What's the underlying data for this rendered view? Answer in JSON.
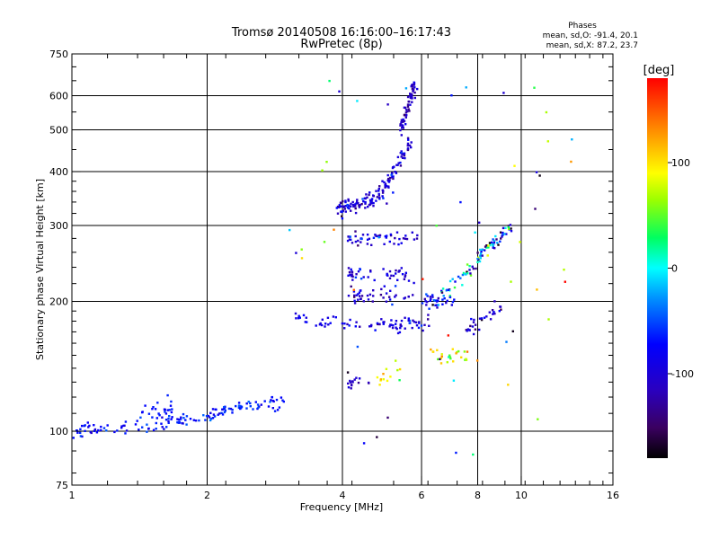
{
  "chart_data": {
    "type": "scatter",
    "title": "Tromsø 20140508 16:16:00–16:17:43",
    "subtitle": "RwPretec (8p)",
    "xlabel": "Frequency [MHz]",
    "ylabel": "Stationary phase Virtual Height [km]",
    "x_scale": "log",
    "y_scale": "log",
    "xlim": [
      1,
      16
    ],
    "ylim": [
      75,
      750
    ],
    "x_ticks": [
      "1",
      "2",
      "4",
      "6",
      "8",
      "10",
      "16"
    ],
    "x_tick_values": [
      1,
      2,
      4,
      6,
      8,
      10,
      16
    ],
    "y_ticks": [
      "75",
      "100",
      "200",
      "300",
      "400",
      "500",
      "600",
      "750"
    ],
    "y_tick_values": [
      75,
      100,
      200,
      300,
      400,
      500,
      600,
      750
    ],
    "grid": true,
    "stats": {
      "title": "Phases",
      "line_o": "mean, sd,O: -91.4, 20.1",
      "line_x": "mean, sd,X:  87.2, 23.7"
    },
    "colorbar": {
      "label": "[deg]",
      "range": [
        -180,
        180
      ],
      "ticks": [
        "100",
        "0",
        "-100"
      ],
      "tick_values": [
        100,
        0,
        -100
      ]
    },
    "traces": [
      {
        "f_start": 1.0,
        "f_end": 1.45,
        "h_start": 100,
        "h_end": 103,
        "phase": -75,
        "sd": 12,
        "n": 40
      },
      {
        "f_start": 1.45,
        "f_end": 3.0,
        "h_start": 103,
        "h_end": 118,
        "phase": -70,
        "sd": 15,
        "n": 110
      },
      {
        "f_start": 1.42,
        "f_end": 1.7,
        "h_start": 112,
        "h_end": 112,
        "phase": -70,
        "sd": 10,
        "n": 20
      },
      {
        "f_start": 3.1,
        "f_end": 3.9,
        "h_start": 183,
        "h_end": 180,
        "phase": -90,
        "sd": 10,
        "n": 20
      },
      {
        "f_start": 3.9,
        "f_end": 4.9,
        "h_start": 325,
        "h_end": 350,
        "phase": -100,
        "sd": 20,
        "n": 90
      },
      {
        "f_start": 4.9,
        "f_end": 5.7,
        "h_start": 360,
        "h_end": 470,
        "phase": -100,
        "sd": 20,
        "n": 60
      },
      {
        "f_start": 5.4,
        "f_end": 5.8,
        "h_start": 500,
        "h_end": 640,
        "phase": -110,
        "sd": 15,
        "n": 60
      },
      {
        "f_start": 4.1,
        "f_end": 5.9,
        "h_start": 280,
        "h_end": 280,
        "phase": -95,
        "sd": 20,
        "n": 50
      },
      {
        "f_start": 4.1,
        "f_end": 5.9,
        "h_start": 230,
        "h_end": 232,
        "phase": -100,
        "sd": 20,
        "n": 45
      },
      {
        "f_start": 4.1,
        "f_end": 5.8,
        "h_start": 205,
        "h_end": 205,
        "phase": -100,
        "sd": 20,
        "n": 40
      },
      {
        "f_start": 4.0,
        "f_end": 6.3,
        "h_start": 175,
        "h_end": 178,
        "phase": -95,
        "sd": 20,
        "n": 60
      },
      {
        "f_start": 6.0,
        "f_end": 7.2,
        "h_start": 200,
        "h_end": 202,
        "phase": -90,
        "sd": 25,
        "n": 30
      },
      {
        "f_start": 6.3,
        "f_end": 7.6,
        "h_start": 150,
        "h_end": 150,
        "phase": 80,
        "sd": 30,
        "n": 25
      },
      {
        "f_start": 6.5,
        "f_end": 9.5,
        "h_start": 200,
        "h_end": 300,
        "phase": -60,
        "sd": 80,
        "n": 90
      },
      {
        "f_start": 4.0,
        "f_end": 4.6,
        "h_start": 130,
        "h_end": 130,
        "phase": -110,
        "sd": 15,
        "n": 15
      },
      {
        "f_start": 4.8,
        "f_end": 5.4,
        "h_start": 130,
        "h_end": 140,
        "phase": 90,
        "sd": 20,
        "n": 12
      },
      {
        "f_start": 7.5,
        "f_end": 9.3,
        "h_start": 170,
        "h_end": 200,
        "phase": -100,
        "sd": 25,
        "n": 30
      }
    ],
    "scatter": {
      "f_min": 3.0,
      "f_max": 13.0,
      "h_min": 85,
      "h_max": 670,
      "n": 60
    }
  }
}
